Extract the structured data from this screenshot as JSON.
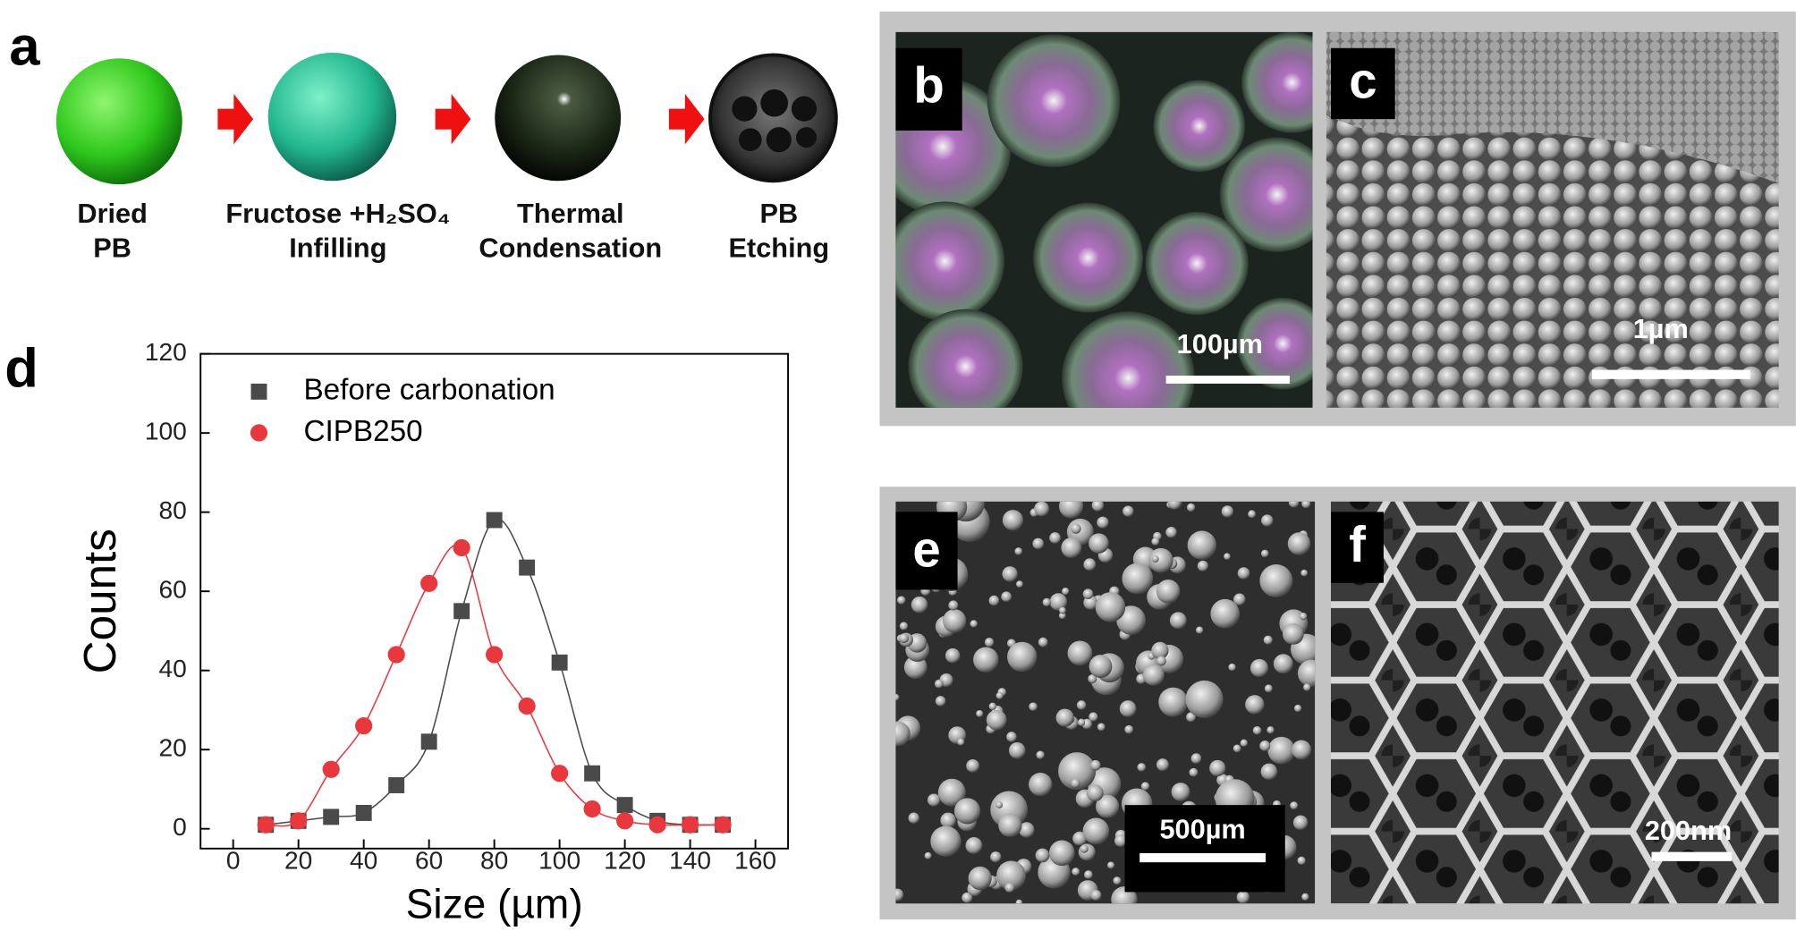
{
  "panel_a": {
    "label": "a",
    "steps": [
      {
        "lines": [
          "Dried",
          "PB"
        ]
      },
      {
        "lines": [
          "Fructose  +H₂SO₄",
          "Infilling"
        ]
      },
      {
        "lines": [
          "Thermal",
          "Condensation"
        ]
      },
      {
        "lines": [
          "PB",
          "Etching"
        ]
      }
    ]
  },
  "panel_b": {
    "label": "b",
    "scale_bar": "100µm"
  },
  "panel_c": {
    "label": "c",
    "scale_bar": "1µm"
  },
  "panel_d": {
    "label": "d"
  },
  "panel_e": {
    "label": "e",
    "scale_bar": "500µm"
  },
  "panel_f": {
    "label": "f",
    "scale_bar": "200nm"
  },
  "chart_data": {
    "type": "scatter",
    "xlabel": "Size (µm)",
    "ylabel": "Counts",
    "x": [
      10,
      20,
      30,
      40,
      50,
      60,
      70,
      80,
      90,
      100,
      110,
      120,
      130,
      140,
      150
    ],
    "series": [
      {
        "name": "Before carbonation",
        "color": "#4a4a4a",
        "marker": "square",
        "values": [
          1,
          2,
          3,
          4,
          11,
          22,
          55,
          78,
          66,
          42,
          14,
          6,
          2,
          1,
          1
        ]
      },
      {
        "name": "CIPB250",
        "color": "#e8383d",
        "marker": "circle",
        "values": [
          1,
          2,
          15,
          26,
          44,
          62,
          71,
          44,
          31,
          14,
          5,
          2,
          1,
          1,
          1
        ]
      }
    ],
    "xlim": [
      -10,
      170
    ],
    "xticks": [
      0,
      20,
      40,
      60,
      80,
      100,
      120,
      140,
      160
    ],
    "ylim": [
      -5,
      120
    ],
    "yticks": [
      0,
      20,
      40,
      60,
      80,
      100,
      120
    ],
    "legend": "upper left"
  }
}
